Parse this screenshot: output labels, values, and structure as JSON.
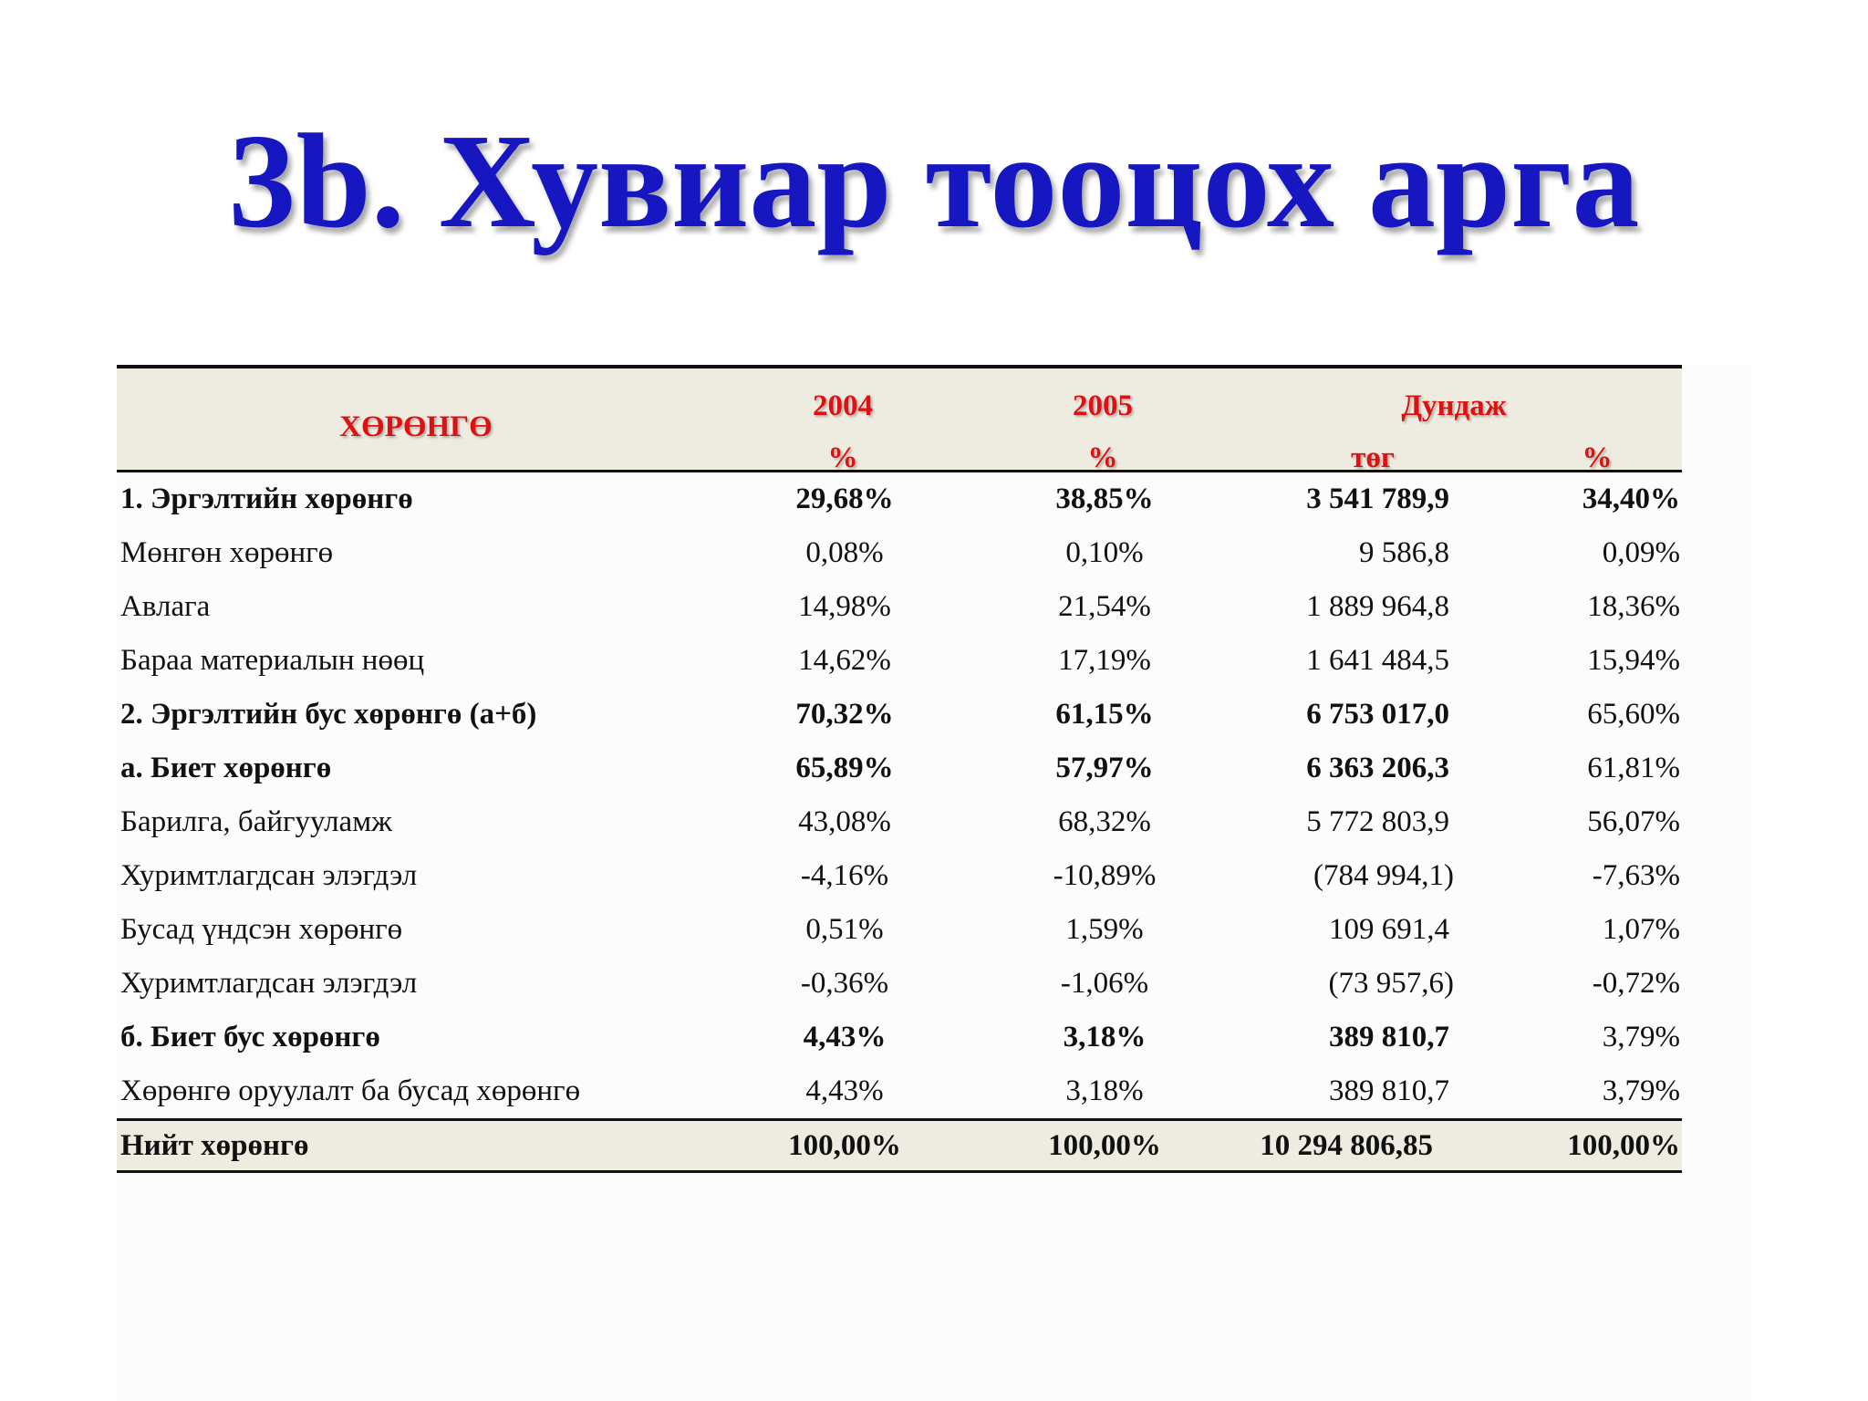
{
  "title": "3b. Хувиар тооцох арга",
  "table": {
    "header": {
      "asset": "ХӨРӨНГӨ",
      "y2004": "2004",
      "y2005": "2005",
      "average": "Дундаж",
      "pct_2004": "%",
      "pct_2005": "%",
      "tog": "төг",
      "pct_avg": "%"
    },
    "rows": [
      {
        "label": "1. Эргэлтийн хөрөнгө",
        "v2004": "29,68%",
        "v2005": "38,85%",
        "avg_tog": "3 541 789,9",
        "avg_pct": "34,40%"
      },
      {
        "label": "Мөнгөн хөрөнгө",
        "v2004": "0,08%",
        "v2005": "0,10%",
        "avg_tog": "9 586,8",
        "avg_pct": "0,09%"
      },
      {
        "label": "Авлага",
        "v2004": "14,98%",
        "v2005": "21,54%",
        "avg_tog": "1 889 964,8",
        "avg_pct": "18,36%"
      },
      {
        "label": "Бараа материалын нөөц",
        "v2004": "14,62%",
        "v2005": "17,19%",
        "avg_tog": "1 641 484,5",
        "avg_pct": "15,94%"
      },
      {
        "label": "2. Эргэлтийн бус хөрөнгө (а+б)",
        "v2004": "70,32%",
        "v2005": "61,15%",
        "avg_tog": "6 753 017,0",
        "avg_pct": "65,60%"
      },
      {
        "label": "а.  Биет хөрөнгө",
        "v2004": "65,89%",
        "v2005": "57,97%",
        "avg_tog": "6 363 206,3",
        "avg_pct": "61,81%"
      },
      {
        "label": "Барилга, байгууламж",
        "v2004": "43,08%",
        "v2005": "68,32%",
        "avg_tog": "5 772 803,9",
        "avg_pct": "56,07%"
      },
      {
        "label": "Хуримтлагдсан элэгдэл",
        "v2004": "-4,16%",
        "v2005": "-10,89%",
        "avg_tog": "(784 994,1)",
        "avg_pct": "-7,63%"
      },
      {
        "label": "Бусад үндсэн хөрөнгө",
        "v2004": "0,51%",
        "v2005": "1,59%",
        "avg_tog": "109 691,4",
        "avg_pct": "1,07%"
      },
      {
        "label": "Хуримтлагдсан элэгдэл",
        "v2004": "-0,36%",
        "v2005": "-1,06%",
        "avg_tog": "(73 957,6)",
        "avg_pct": "-0,72%"
      },
      {
        "label": "б. Биет бус хөрөнгө",
        "v2004": "4,43%",
        "v2005": "3,18%",
        "avg_tog": "389 810,7",
        "avg_pct": "3,79%"
      },
      {
        "label": "Хөрөнгө оруулалт ба бусад хөрөнгө",
        "v2004": "4,43%",
        "v2005": "3,18%",
        "avg_tog": "389 810,7",
        "avg_pct": "3,79%"
      }
    ],
    "total": {
      "label": "Нийт хөрөнгө",
      "v2004": "100,00%",
      "v2005": "100,00%",
      "avg_tog": "10 294 806,85",
      "avg_pct": "100,00%"
    }
  },
  "colors": {
    "title": "#1717c2",
    "header_text": "#dd1111",
    "header_bg": "#eeebe1"
  }
}
